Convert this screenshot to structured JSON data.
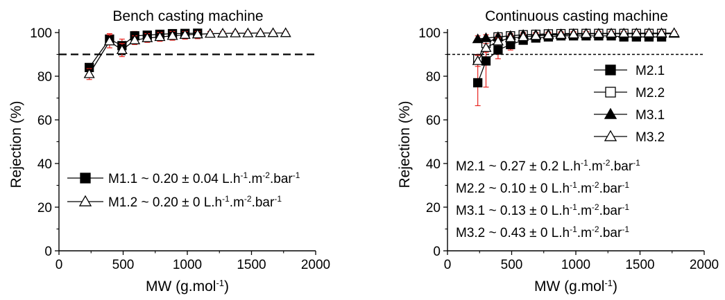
{
  "figure": {
    "panels": [
      {
        "title": "Bench casting machine",
        "xlabel": "MW (g.mol",
        "xlabel_sup": "-1",
        "xlabel_end": ")",
        "ylabel": "Rejection (%)",
        "xticks": [
          "0",
          "500",
          "1000",
          "1500",
          "2000"
        ],
        "yticks": [
          "0",
          "20",
          "40",
          "60",
          "80",
          "100"
        ],
        "reference_line": 90,
        "legend": [
          {
            "series": "M1.1",
            "parts": [
              "M1.1 ~ 0.20 ± 0.04 L.h",
              "-1",
              ".m",
              "-2",
              ".bar",
              "-1"
            ]
          },
          {
            "series": "M1.2",
            "parts": [
              "M1.2 ~ 0.20 ± 0 L.h",
              "-1",
              ".m",
              "-2",
              ".bar",
              "-1"
            ]
          }
        ]
      },
      {
        "title": "Continuous casting machine",
        "xlabel": "MW (g.mol",
        "xlabel_sup": "-1",
        "xlabel_end": ")",
        "ylabel": "Rejection (%)",
        "xticks": [
          "0",
          "500",
          "1000",
          "1500",
          "2000"
        ],
        "yticks": [
          "0",
          "20",
          "40",
          "60",
          "80",
          "100"
        ],
        "reference_line": 90,
        "legend": [
          {
            "series": "M2.1",
            "label": "M2.1"
          },
          {
            "series": "M2.2",
            "label": "M2.2"
          },
          {
            "series": "M3.1",
            "label": "M3.1"
          },
          {
            "series": "M3.2",
            "label": "M3.2"
          }
        ],
        "notes": [
          [
            "M2.1 ~ 0.27 ± 0.2 L.h",
            "-1",
            ".m",
            "-2",
            ".bar",
            "-1"
          ],
          [
            "M2.2 ~ 0.10 ± 0 L.h",
            "-1",
            ".m",
            "-2",
            ".bar",
            "-1"
          ],
          [
            "M3.1 ~ 0.13 ± 0 L.h",
            "-1",
            ".m",
            "-2",
            ".bar",
            "-1"
          ],
          [
            "M3.2 ~ 0.43 ± 0 L.h",
            "-1",
            ".m",
            "-2",
            ".bar",
            "-1"
          ]
        ]
      }
    ]
  },
  "chart_data": [
    {
      "type": "line",
      "title": "Bench casting machine",
      "xlabel": "MW (g.mol-1)",
      "ylabel": "Rejection (%)",
      "xlim": [
        0,
        2000
      ],
      "ylim": [
        0,
        100
      ],
      "reference_line_y": 90,
      "error_bar_color": "#e8231e",
      "series": [
        {
          "name": "M1.1",
          "marker": "filled-square",
          "x": [
            236,
            394,
            491,
            590,
            688,
            786,
            884,
            982,
            1080
          ],
          "y": [
            84,
            97,
            94,
            98.5,
            98.8,
            99.2,
            99.5,
            99.6,
            99.7
          ],
          "err": [
            1.5,
            2.5,
            3,
            2.5,
            2.5,
            2.5,
            2.5,
            2.5,
            2.5
          ]
        },
        {
          "name": "M1.2",
          "marker": "open-triangle",
          "x": [
            236,
            394,
            491,
            590,
            688,
            786,
            884,
            982,
            1080,
            1178,
            1276,
            1374,
            1472,
            1570,
            1668,
            1766
          ],
          "y": [
            81,
            96,
            92,
            96.5,
            97.5,
            98,
            98.5,
            99,
            99.2,
            99.5,
            99.6,
            99.7,
            99.7,
            99.8,
            99.8,
            99.8
          ],
          "err": [
            2.5,
            3,
            3,
            2,
            2,
            2,
            2,
            2,
            1.5,
            1,
            1,
            1,
            1,
            1,
            1,
            1
          ]
        }
      ]
    },
    {
      "type": "line",
      "title": "Continuous casting machine",
      "xlabel": "MW (g.mol-1)",
      "ylabel": "Rejection (%)",
      "xlim": [
        0,
        2000
      ],
      "ylim": [
        0,
        100
      ],
      "reference_line_y": 90,
      "error_bar_color": "#e8231e",
      "series": [
        {
          "name": "M2.1",
          "marker": "filled-square",
          "x": [
            236,
            300,
            394,
            491,
            590,
            688,
            786,
            884,
            982,
            1080,
            1178,
            1276,
            1374,
            1472,
            1570,
            1668
          ],
          "y": [
            77,
            87,
            92,
            94.5,
            96.5,
            97.5,
            98,
            98.5,
            98.5,
            98.5,
            98.5,
            98.5,
            98,
            98,
            98,
            98
          ],
          "err": [
            10.5,
            12,
            4,
            2.5,
            1.5,
            1.5,
            1.5,
            1.5,
            1.5,
            1.5,
            1.5,
            1.5,
            1.5,
            1.5,
            1.5,
            1.5
          ]
        },
        {
          "name": "M2.2",
          "marker": "open-square",
          "x": [
            236,
            300,
            394,
            491,
            590,
            688,
            786,
            884,
            982,
            1080,
            1178,
            1276,
            1374,
            1472,
            1570,
            1668
          ],
          "y": [
            88,
            95,
            98,
            98.5,
            99,
            99.2,
            99.4,
            99.5,
            99.6,
            99.6,
            99.6,
            99.6,
            99.6,
            99.6,
            99.6,
            99.6
          ],
          "err": [
            2,
            1.5,
            1,
            1,
            1,
            1,
            1,
            1,
            1,
            1,
            1,
            1,
            1,
            1,
            1,
            1
          ]
        },
        {
          "name": "M3.1",
          "marker": "filled-triangle",
          "x": [
            236,
            300,
            394,
            491,
            590,
            688,
            786,
            884,
            982,
            1080,
            1178,
            1276,
            1374,
            1472,
            1570,
            1668,
            1766
          ],
          "y": [
            97,
            97.5,
            98,
            98.5,
            99,
            99,
            99.2,
            99.3,
            99.4,
            99.5,
            99.5,
            99.5,
            99.5,
            99.5,
            99.5,
            99.5,
            99.5
          ],
          "err": [
            1.5,
            1.5,
            1,
            1,
            1,
            1,
            1,
            1,
            1,
            1,
            1,
            1,
            1,
            1,
            1,
            1,
            1
          ]
        },
        {
          "name": "M3.2",
          "marker": "open-triangle",
          "x": [
            236,
            300,
            394,
            491,
            590,
            688,
            786,
            884,
            982,
            1080,
            1178,
            1276,
            1374,
            1472,
            1570,
            1668,
            1766
          ],
          "y": [
            87,
            93,
            96,
            97.5,
            98,
            98.5,
            98.8,
            99,
            99.2,
            99.4,
            99.5,
            99.6,
            99.6,
            99.7,
            99.7,
            99.7,
            99.8
          ],
          "err": [
            2.5,
            2,
            1.5,
            1,
            1,
            1,
            1,
            1,
            1,
            1,
            1,
            1,
            1,
            1,
            1,
            1,
            1
          ]
        }
      ]
    }
  ]
}
